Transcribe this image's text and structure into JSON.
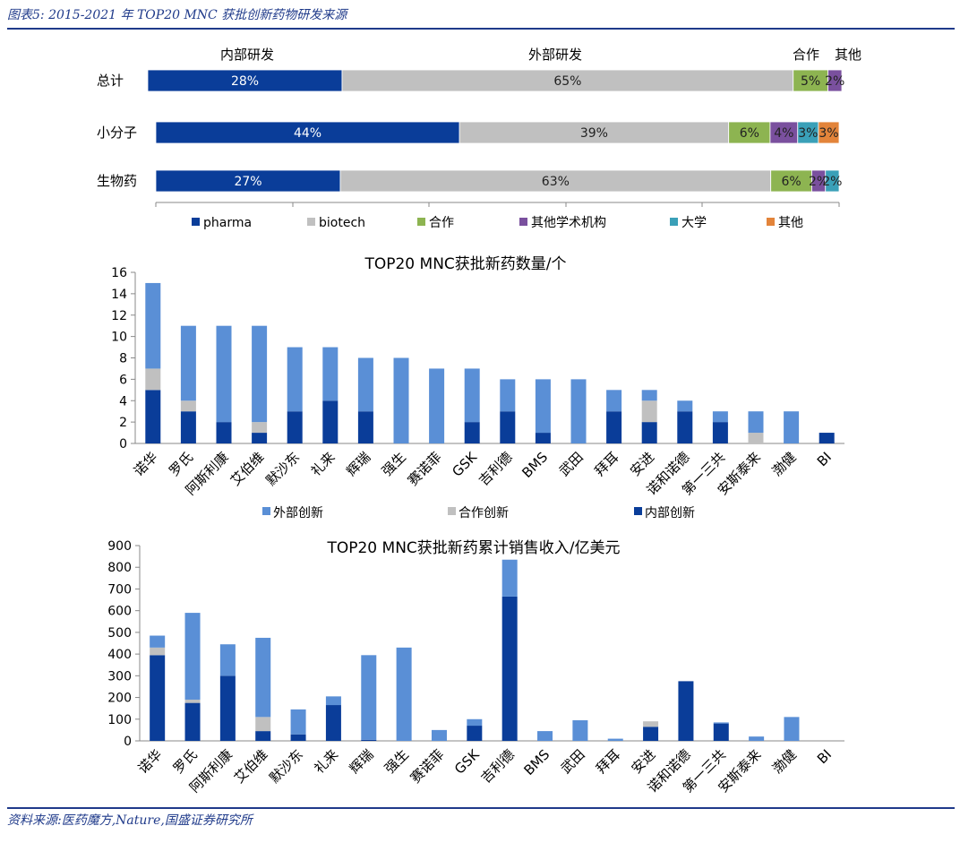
{
  "header": {
    "title": "图表5:  2015-2021 年 TOP20 MNC 获批创新药物研发来源"
  },
  "footer": {
    "source": "资料来源:医药魔方,Nature,国盛证券研究所"
  },
  "colors": {
    "pharma": "#0a3d99",
    "biotech": "#c0c0c0",
    "coop": "#8db451",
    "academic": "#7a509e",
    "university": "#3aa0b8",
    "other": "#e3843a",
    "external_top": "#c0504d",
    "external": "#5a8fd6",
    "partner": "#c0c0c0",
    "internal": "#0a3d99"
  },
  "chart_data": [
    {
      "type": "bar",
      "orientation": "horizontal-stacked-percent",
      "categories": [
        "总计",
        "小分子",
        "生物药"
      ],
      "top_labels": [
        "内部研发",
        "外部研发",
        "合作",
        "其他"
      ],
      "series": [
        {
          "name": "pharma",
          "values": [
            28,
            44,
            27
          ]
        },
        {
          "name": "biotech",
          "values": [
            65,
            39,
            63
          ]
        },
        {
          "name": "合作",
          "values": [
            5,
            6,
            6
          ]
        },
        {
          "name": "其他学术机构",
          "values": [
            2,
            4,
            2
          ]
        },
        {
          "name": "大学",
          "values": [
            0,
            3,
            2
          ]
        },
        {
          "name": "其他",
          "values": [
            0,
            3,
            0
          ]
        }
      ],
      "value_labels": [
        [
          "28%",
          "65%",
          "5%",
          "2%",
          "",
          ""
        ],
        [
          "44%",
          "39%",
          "6%",
          "4%",
          "3%",
          "3%"
        ],
        [
          "27%",
          "63%",
          "6%",
          "2%",
          "2%",
          ""
        ]
      ],
      "legend": [
        "pharma",
        "biotech",
        "合作",
        "其他学术机构",
        "大学",
        "其他"
      ]
    },
    {
      "type": "bar",
      "orientation": "vertical-stacked",
      "title": "TOP20 MNC获批新药数量/个",
      "categories": [
        "诺华",
        "罗氏",
        "阿斯利康",
        "艾伯维",
        "默沙东",
        "礼来",
        "辉瑞",
        "强生",
        "赛诺菲",
        "GSK",
        "吉利德",
        "BMS",
        "武田",
        "拜耳",
        "安进",
        "诺和诺德",
        "第一三共",
        "安斯泰来",
        "渤健",
        "BI"
      ],
      "ylim": [
        0,
        16
      ],
      "yticks": [
        "0",
        "2",
        "4",
        "6",
        "8",
        "10",
        "12",
        "14",
        "16"
      ],
      "series": [
        {
          "name": "内部创新",
          "values": [
            5,
            3,
            2,
            1,
            3,
            4,
            3,
            0,
            0,
            2,
            3,
            1,
            0,
            3,
            2,
            3,
            2,
            0,
            0,
            1
          ]
        },
        {
          "name": "合作创新",
          "values": [
            2,
            1,
            0,
            1,
            0,
            0,
            0,
            0,
            0,
            0,
            0,
            0,
            0,
            0,
            2,
            0,
            0,
            1,
            0,
            0
          ]
        },
        {
          "name": "外部创新",
          "values": [
            8,
            7,
            9,
            9,
            6,
            5,
            5,
            8,
            7,
            5,
            3,
            5,
            6,
            2,
            1,
            1,
            1,
            2,
            3,
            0
          ]
        }
      ],
      "legend": [
        "外部创新",
        "合作创新",
        "内部创新"
      ]
    },
    {
      "type": "bar",
      "orientation": "vertical-stacked",
      "title": "TOP20 MNC获批新药累计销售收入/亿美元",
      "categories": [
        "诺华",
        "罗氏",
        "阿斯利康",
        "艾伯维",
        "默沙东",
        "礼来",
        "辉瑞",
        "强生",
        "赛诺菲",
        "GSK",
        "吉利德",
        "BMS",
        "武田",
        "拜耳",
        "安进",
        "诺和诺德",
        "第一三共",
        "安斯泰来",
        "渤健",
        "BI"
      ],
      "ylim": [
        0,
        900
      ],
      "yticks": [
        "0",
        "100",
        "200",
        "300",
        "400",
        "500",
        "600",
        "700",
        "800",
        "900"
      ],
      "series": [
        {
          "name": "内部创新",
          "values": [
            395,
            175,
            300,
            45,
            30,
            165,
            5,
            0,
            0,
            70,
            665,
            0,
            0,
            0,
            65,
            275,
            80,
            0,
            0,
            0
          ]
        },
        {
          "name": "合作创新",
          "values": [
            35,
            15,
            0,
            65,
            0,
            0,
            0,
            0,
            0,
            0,
            0,
            0,
            0,
            0,
            25,
            0,
            0,
            0,
            0,
            0
          ]
        },
        {
          "name": "外部创新",
          "values": [
            55,
            400,
            145,
            365,
            115,
            40,
            390,
            430,
            50,
            30,
            170,
            45,
            95,
            10,
            0,
            0,
            5,
            20,
            110,
            0
          ]
        }
      ]
    }
  ]
}
